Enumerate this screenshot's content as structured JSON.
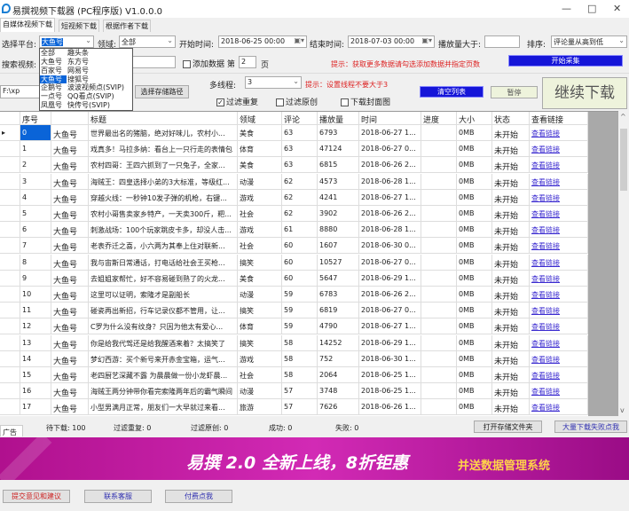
{
  "window": {
    "title": "易撰视频下载器 (PC程序版) V1.0.0.0",
    "minimize": "—",
    "maximize": "□",
    "close": "✕"
  },
  "tabs": [
    "自媒体视频下载",
    "短视频下载",
    "根据作者下载"
  ],
  "filters": {
    "platform_label": "选择平台:",
    "platform_value": "大鱼号",
    "domain_label": "领域:",
    "domain_value": "全部",
    "start_label": "开始时间:",
    "start_value": "2018-06-25 00:00",
    "end_label": "结束时间:",
    "end_value": "2018-07-03 00:00",
    "plays_label": "播放量大于:",
    "plays_value": "",
    "sort_label": "排序:",
    "sort_value": "评论量从高到低"
  },
  "search": {
    "label": "搜索视频:",
    "value": "",
    "add_data_label": "添加数据",
    "page_prefix": "第",
    "page_value": "2",
    "page_suffix": "页",
    "hint": "提示：获取更多数据请勾选添加数据并指定页数",
    "start_button": "开始采集"
  },
  "storage": {
    "path": "F:\\xp",
    "choose_button": "选择存储路径",
    "threads_label": "多线程:",
    "threads_value": "3",
    "threads_hint": "提示：设置线程不要大于3",
    "filter_dup": "过滤重复",
    "filter_dup_checked": true,
    "filter_orig": "过滤原创",
    "filter_orig_checked": false,
    "download_cover": "下载封面图",
    "download_cover_checked": false,
    "clear_button": "清空列表",
    "pause_button": "暂停",
    "continue_button": "继续下载"
  },
  "platform_options": [
    "全部",
    "大鱼号",
    "百家号",
    "大鱼号",
    "企鹅号",
    "一点号",
    "凤凰号",
    "趣头条",
    "东方号",
    "网易号",
    "搜狐号",
    "波波视频点(SVIP)",
    "QQ看点(SVIP)",
    "快传号(SVIP)"
  ],
  "platform_selected_index": 3,
  "table": {
    "columns": [
      "序号",
      "",
      "标题",
      "领域",
      "评论",
      "播放量",
      "时间",
      "进度",
      "大小",
      "状态",
      "查看链接"
    ],
    "rows": [
      [
        "0",
        "大鱼号",
        "世界最出名的猪脑，绝对好味儿，农村小...",
        "美食",
        "63",
        "6793",
        "2018-06-27 1...",
        "",
        "0MB",
        "未开始",
        "查看链接"
      ],
      [
        "1",
        "大鱼号",
        "戏真多！马拉多纳：看台上一只行走的表情包",
        "体育",
        "63",
        "47124",
        "2018-06-27 0...",
        "",
        "0MB",
        "未开始",
        "查看链接"
      ],
      [
        "2",
        "大鱼号",
        "农村四哥：王四六抓到了一只兔子，全家...",
        "美食",
        "63",
        "6815",
        "2018-06-26 2...",
        "",
        "0MB",
        "未开始",
        "查看链接"
      ],
      [
        "3",
        "大鱼号",
        "海贼王：四皇选择小弟的3大标准，等级红...",
        "动漫",
        "62",
        "4573",
        "2018-06-28 1...",
        "",
        "0MB",
        "未开始",
        "查看链接"
      ],
      [
        "4",
        "大鱼号",
        "穿越火线：一秒钟10发子弹的机枪，右键...",
        "游戏",
        "62",
        "4241",
        "2018-06-27 1...",
        "",
        "0MB",
        "未开始",
        "查看链接"
      ],
      [
        "5",
        "大鱼号",
        "农村小哥售卖家乡特产，一天卖300斤，粑...",
        "社会",
        "62",
        "3902",
        "2018-06-26 2...",
        "",
        "0MB",
        "未开始",
        "查看链接"
      ],
      [
        "6",
        "大鱼号",
        "刺激战场：100个玩家跳皮卡多，却没人击...",
        "游戏",
        "61",
        "8880",
        "2018-06-28 1...",
        "",
        "0MB",
        "未开始",
        "查看链接"
      ],
      [
        "7",
        "大鱼号",
        "老表乔迁之喜，小六两为其奉上住对联新...",
        "社会",
        "60",
        "1607",
        "2018-06-30 0...",
        "",
        "0MB",
        "未开始",
        "查看链接"
      ],
      [
        "8",
        "大鱼号",
        "我与宙斯日常通话，打电话给社会王买枪...",
        "搞笑",
        "60",
        "10527",
        "2018-06-27 0...",
        "",
        "0MB",
        "未开始",
        "查看链接"
      ],
      [
        "9",
        "大鱼号",
        "去姐姐家帮忙，好不容易碰到熟了的火龙...",
        "美食",
        "60",
        "5647",
        "2018-06-29 1...",
        "",
        "0MB",
        "未开始",
        "查看链接"
      ],
      [
        "10",
        "大鱼号",
        "这里可以证明，索隆才是副船长",
        "动漫",
        "59",
        "6783",
        "2018-06-26 2...",
        "",
        "0MB",
        "未开始",
        "查看链接"
      ],
      [
        "11",
        "大鱼号",
        "碰瓷再出新招，行车记录仪都不管用，让...",
        "搞笑",
        "59",
        "6819",
        "2018-06-27 0...",
        "",
        "0MB",
        "未开始",
        "查看链接"
      ],
      [
        "12",
        "大鱼号",
        "C罗为什么没有纹身？只因为他太有爱心...",
        "体育",
        "59",
        "4790",
        "2018-06-27 1...",
        "",
        "0MB",
        "未开始",
        "查看链接"
      ],
      [
        "13",
        "大鱼号",
        "你是给我代驾还是给我醒酒来着？太搞笑了",
        "搞笑",
        "58",
        "14252",
        "2018-06-29 1...",
        "",
        "0MB",
        "未开始",
        "查看链接"
      ],
      [
        "14",
        "大鱼号",
        "梦幻西游：买个新号来开赤金宝箱，运气...",
        "游戏",
        "58",
        "752",
        "2018-06-30 1...",
        "",
        "0MB",
        "未开始",
        "查看链接"
      ],
      [
        "15",
        "大鱼号",
        "老四厨艺深藏不露 为晨晨做一份小龙虾晨...",
        "社会",
        "58",
        "2064",
        "2018-06-25 1...",
        "",
        "0MB",
        "未开始",
        "查看链接"
      ],
      [
        "16",
        "大鱼号",
        "海贼王两分钟带你看完索隆两年后的霸气瞬间",
        "动漫",
        "57",
        "3748",
        "2018-06-25 1...",
        "",
        "0MB",
        "未开始",
        "查看链接"
      ],
      [
        "17",
        "大鱼号",
        "小型男满月正常，朋友们一大早就过来看...",
        "旅游",
        "57",
        "7626",
        "2018-06-26 1...",
        "",
        "0MB",
        "未开始",
        "查看链接"
      ]
    ]
  },
  "status": {
    "ad_tab": "广告",
    "pending": "待下载: 100",
    "dup": "过滤重复: 0",
    "orig": "过滤原创: 0",
    "success": "成功: 0",
    "fail": "失败: 0",
    "open_folder": "打开存储文件夹",
    "bulk_fail": "大量下载失败点我"
  },
  "banner": {
    "main": "易撰 2.0 全新上线，8折钜惠",
    "sub": "并送数据管理系统"
  },
  "footer": {
    "feedback": "提交意见和建议",
    "support": "联系客服",
    "pay": "付费点我"
  },
  "colors": {
    "accent_blue": "#1515d8",
    "hint_red": "#dd2222",
    "link": "#3b2bd0",
    "banner": "#c21aa4"
  }
}
